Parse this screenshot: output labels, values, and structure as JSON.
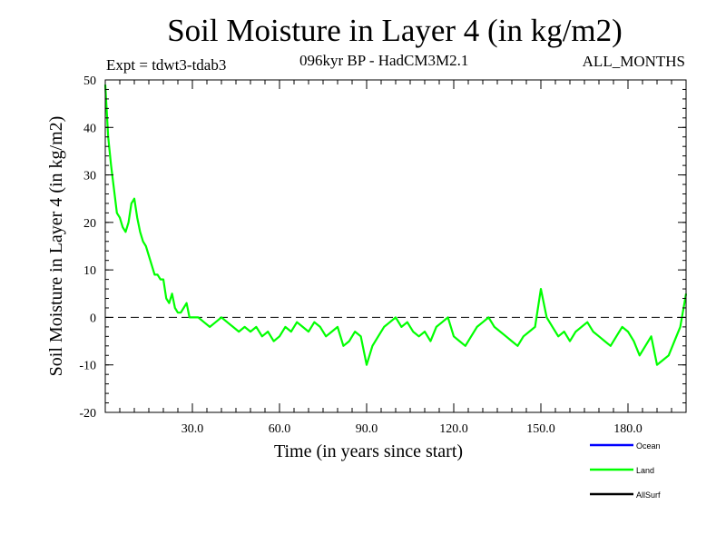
{
  "chart_data": {
    "type": "line",
    "title": "Soil Moisture in Layer 4 (in kg/m2)",
    "subtitle": "096kyr BP - HadCM3M2.1",
    "experiment_label": "Expt = tdwt3-tdab3",
    "period_label": "ALL_MONTHS",
    "xlabel": "Time (in years since start)",
    "ylabel": "Soil Moisture in Layer 4 (in kg/m2)",
    "xlim": [
      0,
      200
    ],
    "ylim": [
      -20,
      50
    ],
    "x_ticks": [
      30,
      60,
      90,
      120,
      150,
      180
    ],
    "x_tick_labels": [
      "30.0",
      "60.0",
      "90.0",
      "120.0",
      "150.0",
      "180.0"
    ],
    "y_ticks": [
      -20,
      -10,
      0,
      10,
      20,
      30,
      40,
      50
    ],
    "y_tick_labels": [
      "-20",
      "-10",
      "0",
      "10",
      "20",
      "30",
      "40",
      "50"
    ],
    "reference_line": {
      "y": 0,
      "style": "dashed"
    },
    "series": [
      {
        "name": "Ocean",
        "color": "#0000ff",
        "x": [],
        "values": []
      },
      {
        "name": "Land",
        "color": "#00ff00",
        "x": [
          0,
          1,
          2,
          3,
          4,
          5,
          6,
          7,
          8,
          9,
          10,
          11,
          12,
          13,
          14,
          15,
          16,
          17,
          18,
          19,
          20,
          21,
          22,
          23,
          24,
          25,
          26,
          27,
          28,
          29,
          30,
          32,
          34,
          36,
          38,
          40,
          42,
          44,
          46,
          48,
          50,
          52,
          54,
          56,
          58,
          60,
          62,
          64,
          66,
          68,
          70,
          72,
          74,
          76,
          78,
          80,
          82,
          84,
          86,
          88,
          90,
          92,
          94,
          96,
          98,
          100,
          102,
          104,
          106,
          108,
          110,
          112,
          114,
          116,
          118,
          120,
          122,
          124,
          126,
          128,
          130,
          132,
          134,
          136,
          138,
          140,
          142,
          144,
          146,
          148,
          150,
          152,
          154,
          156,
          158,
          160,
          162,
          164,
          166,
          168,
          170,
          172,
          174,
          176,
          178,
          180,
          182,
          184,
          186,
          188,
          190,
          192,
          194,
          196,
          198,
          200
        ],
        "values": [
          49,
          38,
          32,
          27,
          22,
          21,
          19,
          18,
          20,
          24,
          25,
          21,
          18,
          16,
          15,
          13,
          11,
          9,
          9,
          8,
          8,
          4,
          3,
          5,
          2,
          1,
          1,
          2,
          3,
          0,
          0,
          0,
          -1,
          -2,
          -1,
          0,
          -1,
          -2,
          -3,
          -2,
          -3,
          -2,
          -4,
          -3,
          -5,
          -4,
          -2,
          -3,
          -1,
          -2,
          -3,
          -1,
          -2,
          -4,
          -3,
          -2,
          -6,
          -5,
          -3,
          -4,
          -10,
          -6,
          -4,
          -2,
          -1,
          0,
          -2,
          -1,
          -3,
          -4,
          -3,
          -5,
          -2,
          -1,
          0,
          -4,
          -5,
          -6,
          -4,
          -2,
          -1,
          0,
          -2,
          -3,
          -4,
          -5,
          -6,
          -4,
          -3,
          -2,
          6,
          0,
          -2,
          -4,
          -3,
          -5,
          -3,
          -2,
          -1,
          -3,
          -4,
          -5,
          -6,
          -4,
          -2,
          -3,
          -5,
          -8,
          -6,
          -4,
          -10,
          -9,
          -8,
          -5,
          -2,
          5
        ]
      },
      {
        "name": "AllSurf",
        "color": "#000000",
        "x": [],
        "values": []
      }
    ],
    "legend": {
      "position": "bottom-right",
      "entries": [
        "Ocean",
        "Land",
        "AllSurf"
      ]
    }
  }
}
